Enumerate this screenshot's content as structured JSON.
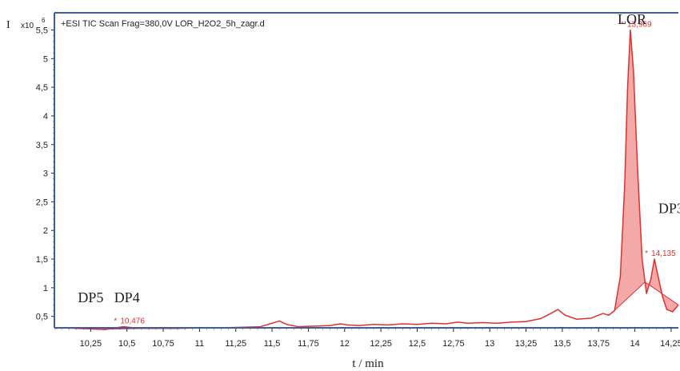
{
  "chart_data": {
    "type": "line",
    "title": "+ESI TIC Scan Frag=380,0V LOR_H2O2_5h_zagr.d",
    "ylabel": "I",
    "y_multiplier": "x10",
    "y_exponent": "6",
    "xlabel": "t / min",
    "xlim": [
      10.0,
      14.3
    ],
    "ylim": [
      0.3,
      5.8
    ],
    "x_ticks": [
      10.25,
      10.5,
      10.75,
      11,
      11.25,
      11.5,
      11.75,
      12,
      12.25,
      12.5,
      12.75,
      13,
      13.25,
      13.5,
      13.75,
      14,
      14.25
    ],
    "x_tick_labels": [
      "10,25",
      "10,5",
      "10,75",
      "11",
      "11,25",
      "11,5",
      "11,75",
      "12",
      "12,25",
      "12,5",
      "12,75",
      "13",
      "13,25",
      "13,5",
      "13,75",
      "14",
      "14,25"
    ],
    "y_ticks": [
      0.5,
      1,
      1.5,
      2,
      2.5,
      3,
      3.5,
      4,
      4.5,
      5,
      5.5
    ],
    "y_tick_labels": [
      "0,5",
      "1",
      "1,5",
      "2",
      "2,5",
      "3",
      "3,5",
      "4",
      "4,5",
      "5",
      "5,5"
    ],
    "grid": false,
    "line_color": "#e23030",
    "fill_color": "#f4a9a9",
    "series": [
      {
        "values": [
          [
            9.97,
            0.29
          ],
          [
            10.05,
            0.3
          ],
          [
            10.15,
            0.29
          ],
          [
            10.25,
            0.28
          ],
          [
            10.35,
            0.27
          ],
          [
            10.42,
            0.3
          ],
          [
            10.476,
            0.32
          ],
          [
            10.55,
            0.3
          ],
          [
            10.65,
            0.29
          ],
          [
            10.75,
            0.29
          ],
          [
            10.85,
            0.29
          ],
          [
            11.0,
            0.3
          ],
          [
            11.15,
            0.3
          ],
          [
            11.3,
            0.31
          ],
          [
            11.42,
            0.32
          ],
          [
            11.5,
            0.38
          ],
          [
            11.55,
            0.42
          ],
          [
            11.6,
            0.36
          ],
          [
            11.68,
            0.32
          ],
          [
            11.8,
            0.33
          ],
          [
            11.9,
            0.34
          ],
          [
            11.97,
            0.37
          ],
          [
            12.02,
            0.35
          ],
          [
            12.1,
            0.34
          ],
          [
            12.2,
            0.36
          ],
          [
            12.3,
            0.35
          ],
          [
            12.4,
            0.37
          ],
          [
            12.5,
            0.36
          ],
          [
            12.6,
            0.38
          ],
          [
            12.7,
            0.37
          ],
          [
            12.78,
            0.4
          ],
          [
            12.85,
            0.38
          ],
          [
            12.95,
            0.39
          ],
          [
            13.05,
            0.38
          ],
          [
            13.15,
            0.4
          ],
          [
            13.25,
            0.41
          ],
          [
            13.35,
            0.46
          ],
          [
            13.42,
            0.55
          ],
          [
            13.47,
            0.62
          ],
          [
            13.52,
            0.52
          ],
          [
            13.6,
            0.45
          ],
          [
            13.7,
            0.47
          ],
          [
            13.78,
            0.55
          ],
          [
            13.82,
            0.52
          ],
          [
            13.86,
            0.6
          ],
          [
            13.9,
            1.2
          ],
          [
            13.93,
            2.8
          ],
          [
            13.95,
            4.5
          ],
          [
            13.969,
            5.5
          ],
          [
            13.99,
            4.8
          ],
          [
            14.02,
            3.0
          ],
          [
            14.05,
            1.5
          ],
          [
            14.08,
            0.9
          ],
          [
            14.11,
            1.15
          ],
          [
            14.135,
            1.5
          ],
          [
            14.16,
            1.2
          ],
          [
            14.19,
            0.85
          ],
          [
            14.22,
            0.62
          ],
          [
            14.26,
            0.58
          ],
          [
            14.3,
            0.7
          ]
        ]
      }
    ],
    "peak_markers": [
      {
        "x": 10.476,
        "y": 0.32,
        "label": "10,476"
      },
      {
        "x": 13.969,
        "y": 5.5,
        "label": "13,969"
      },
      {
        "x": 14.135,
        "y": 1.5,
        "label": "14,135"
      }
    ],
    "filled_regions": [
      {
        "from": 10.3,
        "to": 10.65
      },
      {
        "from": 13.85,
        "to": 14.07
      },
      {
        "from": 14.07,
        "to": 14.3
      }
    ],
    "annotations": [
      {
        "text": "DP5",
        "x": 10.25,
        "y": 0.75
      },
      {
        "text": "DP4",
        "x": 10.5,
        "y": 0.75
      },
      {
        "text": "LOR",
        "x": 13.98,
        "y": 6.0
      },
      {
        "text": "DP3",
        "x": 14.25,
        "y": 2.3
      }
    ]
  }
}
